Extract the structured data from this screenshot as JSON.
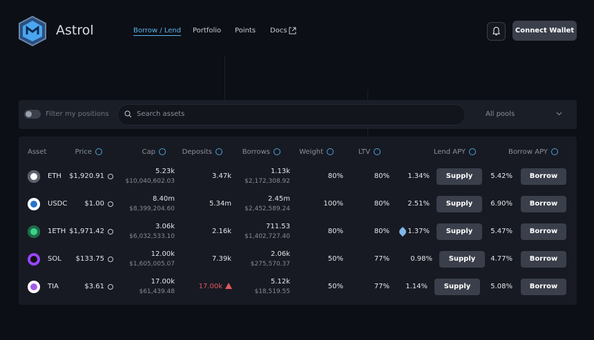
{
  "header": {
    "brand": "Astrol",
    "nav": [
      "Borrow / Lend",
      "Portfolio",
      "Points",
      "Docs"
    ],
    "connect": "Connect Wallet"
  },
  "filters": {
    "toggle": "Filter my positions",
    "search": "Search assets",
    "pool": "All pools"
  },
  "table": {
    "columns": [
      "Asset",
      "Price",
      "Cap",
      "Deposits",
      "Borrows",
      "Weight",
      "LTV",
      "Lend APY",
      "Borrow APY"
    ],
    "supply": "Supply",
    "borrow": "Borrow",
    "rows": [
      {
        "asset": "ETH",
        "price": "$1,920.91",
        "cap": "5.23k",
        "cap_usd": "$10,040,602.03",
        "deposits": "3.47k",
        "borrows": "1.13k",
        "borrows_usd": "$2,172,308.92",
        "weight": "80%",
        "ltv": "80%",
        "lend_apy": "1.34%",
        "borrow_apy": "5.42%"
      },
      {
        "asset": "USDC",
        "price": "$1.00",
        "cap": "8.40m",
        "cap_usd": "$8,399,204.60",
        "deposits": "5.34m",
        "borrows": "2.45m",
        "borrows_usd": "$2,452,589.24",
        "weight": "100%",
        "ltv": "80%",
        "lend_apy": "2.51%",
        "borrow_apy": "6.90%"
      },
      {
        "asset": "1ETH",
        "price": "$1,971.42",
        "cap": "3.06k",
        "cap_usd": "$6,032,533.10",
        "deposits": "2.16k",
        "borrows": "711.53",
        "borrows_usd": "$1,402,727.40",
        "weight": "80%",
        "ltv": "80%",
        "lend_apy": "1.37%",
        "borrow_apy": "5.47%"
      },
      {
        "asset": "SOL",
        "price": "$133.75",
        "cap": "12.00k",
        "cap_usd": "$1,605,005.07",
        "deposits": "7.39k",
        "borrows": "2.06k",
        "borrows_usd": "$275,570.37",
        "weight": "50%",
        "ltv": "77%",
        "lend_apy": "0.98%",
        "borrow_apy": "4.77%"
      },
      {
        "asset": "TIA",
        "price": "$3.61",
        "cap": "17.00k",
        "cap_usd": "$61,439.48",
        "deposits": "17.00k",
        "borrows": "5.12k",
        "borrows_usd": "$18,519.55",
        "weight": "50%",
        "ltv": "77%",
        "lend_apy": "1.14%",
        "borrow_apy": "5.08%"
      }
    ]
  }
}
